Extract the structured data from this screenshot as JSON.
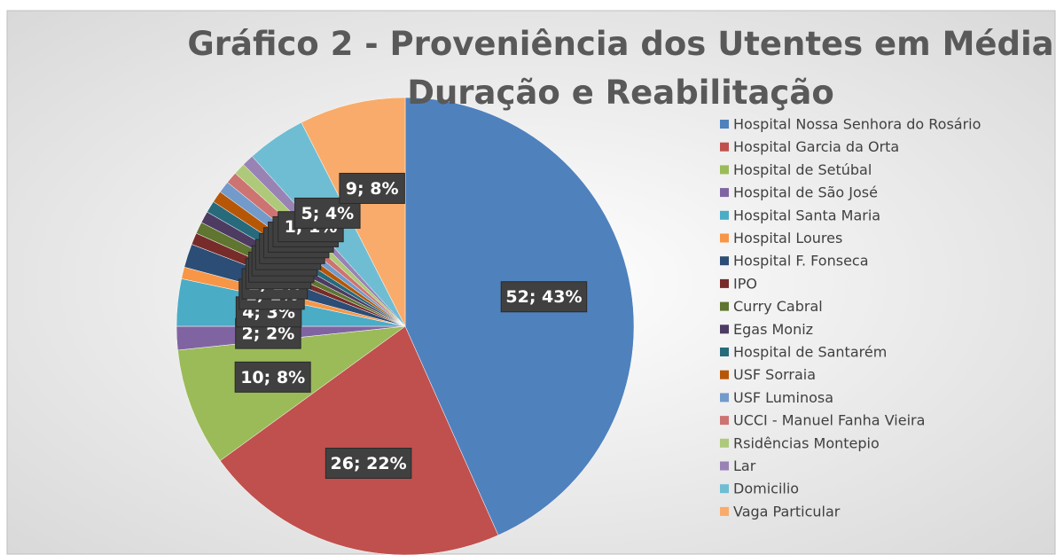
{
  "chart_data": {
    "type": "pie",
    "title": "Gráfico 2 - Proveniência dos Utentes em Média Duração e Reabilitação",
    "categories": [
      "Hospital Nossa Senhora do Rosário",
      "Hospital Garcia da Orta",
      "Hospital de Setúbal",
      "Hospital de São José",
      "Hospital Santa Maria",
      "Hospital Loures",
      "Hospital F. Fonseca",
      "IPO",
      "Curry Cabral",
      "Egas Moniz",
      "Hospital de Santarém",
      "USF Sorraia",
      "USF Luminosa",
      "UCCI - Manuel Fanha Vieira",
      "Rsidências Montepio",
      "Lar",
      "Domicilio",
      "Vaga Particular"
    ],
    "values": [
      52,
      26,
      10,
      2,
      4,
      1,
      2,
      1,
      1,
      1,
      1,
      1,
      1,
      1,
      1,
      1,
      5,
      9
    ],
    "value_labels": [
      "52; 43%",
      "26; 22%",
      "10; 8%",
      "2; 2%",
      "4; 3%",
      "1; 1%",
      "2; 2%",
      "1; 1%",
      "1; 1%",
      "1; 1%",
      "1; 1%",
      "1; 1%",
      "1; 1%",
      "1; 1%",
      "1; 1%",
      "1; 1%",
      "5; 4%",
      "9; 8%"
    ],
    "colors": [
      "#4f81bd",
      "#c0504d",
      "#9bbb59",
      "#8064a2",
      "#4bacc6",
      "#f79646",
      "#2c4d75",
      "#772c2a",
      "#5f7530",
      "#4d3b62",
      "#276a7c",
      "#b65708",
      "#729aca",
      "#cd7371",
      "#afc97a",
      "#9983b5",
      "#6fbdd3",
      "#f9ab6b"
    ],
    "legend": "right"
  }
}
